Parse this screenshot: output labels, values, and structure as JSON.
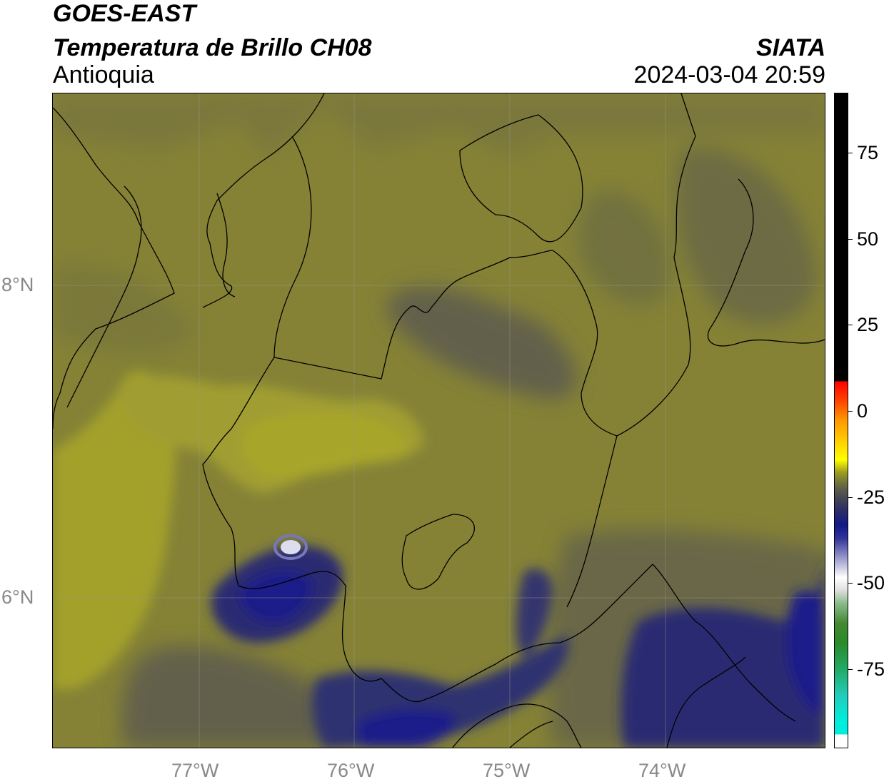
{
  "header": {
    "line1": "GOES-EAST",
    "line2": "Temperatura de Brillo CH08",
    "region": "Antioquia",
    "organization": "SIATA",
    "timestamp": "2024-03-04 20:59"
  },
  "axes": {
    "lon_ticks": [
      "77°W",
      "76°W",
      "75°W",
      "74°W"
    ],
    "lat_ticks": [
      "8°N",
      "6°N"
    ]
  },
  "colorbar": {
    "ticks": [
      "75",
      "50",
      "25",
      "0",
      "-25",
      "-50",
      "-75"
    ],
    "values": [
      75,
      50,
      25,
      0,
      -25,
      -50,
      -75
    ]
  },
  "colors": {
    "base": "#858236",
    "warm_yellow": "#a3a12c",
    "mid_olive": "#76733c",
    "cool_gray": "#5e5d4e",
    "dark_blue": "#2a2a72",
    "deep_blue": "#1a1f8a",
    "hot_white": "#ddddee"
  }
}
